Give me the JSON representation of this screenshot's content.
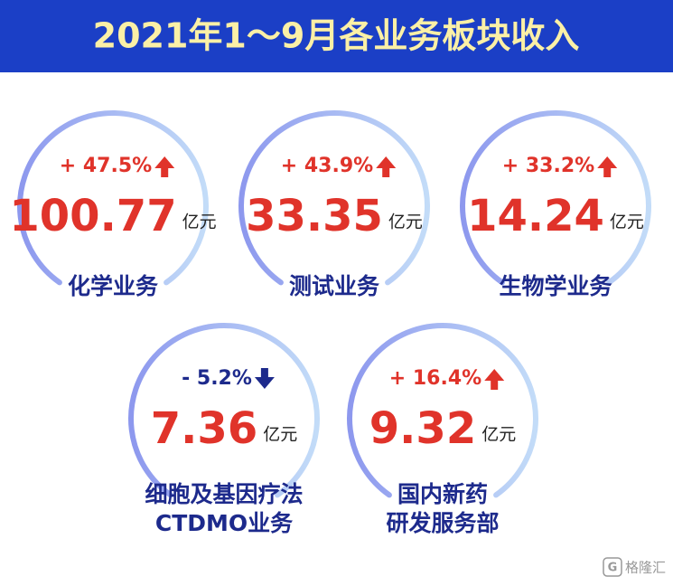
{
  "header": {
    "title": "2021年1～9月各业务板块收入"
  },
  "items": [
    {
      "change": "+ 47.5%",
      "value": "100.77",
      "unit": "亿元",
      "name": [
        "化学业务"
      ]
    },
    {
      "change": "+ 43.9%",
      "value": "33.35",
      "unit": "亿元",
      "name": [
        "测试业务"
      ]
    },
    {
      "change": "+ 33.2%",
      "value": "14.24",
      "unit": "亿元",
      "name": [
        "生物学业务"
      ]
    },
    {
      "change": "- 5.2%",
      "value": "7.36",
      "unit": "亿元",
      "name": [
        "细胞及基因疗法",
        "CTDMO业务"
      ]
    },
    {
      "change": "+ 16.4%",
      "value": "9.32",
      "unit": "亿元",
      "name": [
        "国内新药",
        "研发服务部"
      ]
    }
  ],
  "watermark": {
    "logo": "G",
    "text": "格隆汇"
  }
}
